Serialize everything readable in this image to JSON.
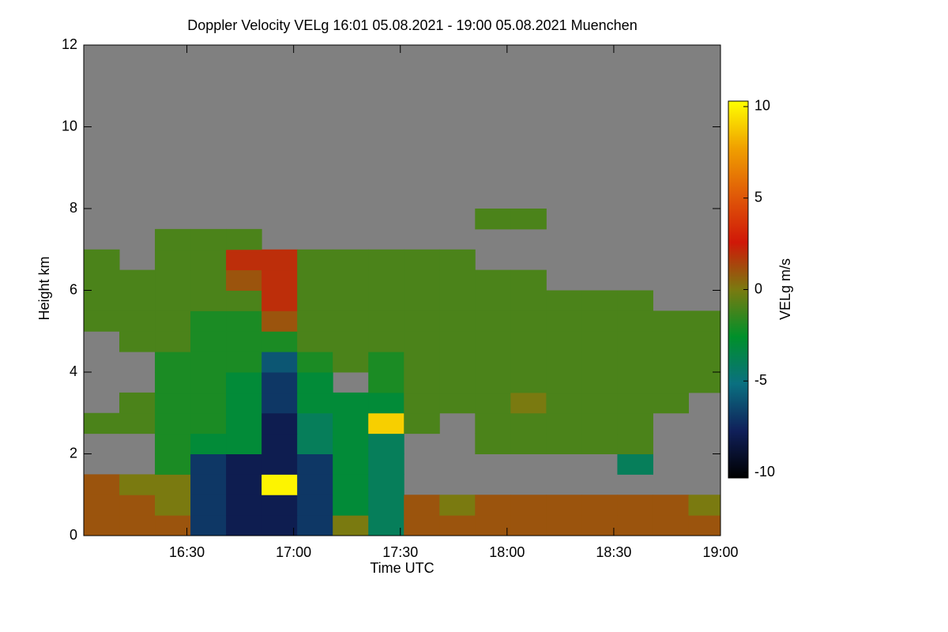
{
  "chart_data": {
    "type": "heatmap",
    "title": "Doppler Velocity VELg   16:01 05.08.2021 - 19:00 05.08.2021 Muenchen",
    "x_label": "Time UTC",
    "y_label": "Height km",
    "colorbar_label": "VELg m/s",
    "xlim": [
      961,
      1140
    ],
    "xticks": [
      {
        "value": 990,
        "label": "16:30"
      },
      {
        "value": 1020,
        "label": "17:00"
      },
      {
        "value": 1050,
        "label": "17:30"
      },
      {
        "value": 1080,
        "label": "18:00"
      },
      {
        "value": 1110,
        "label": "18:30"
      },
      {
        "value": 1140,
        "label": "19:00"
      }
    ],
    "ylim": [
      0,
      12
    ],
    "yticks": [
      0,
      2,
      4,
      6,
      8,
      10,
      12
    ],
    "zlim": [
      -10.3,
      10.3
    ],
    "zticks": [
      -10,
      -5,
      0,
      5,
      10
    ],
    "background": "#808080",
    "colormap": [
      "#000000",
      "#10205a",
      "#0a7080",
      "#00902a",
      "#7a7a10",
      "#d01808",
      "#e05a08",
      "#f0a000",
      "#ffff00"
    ],
    "x": [
      966,
      976,
      986,
      996,
      1006,
      1016,
      1026,
      1036,
      1046,
      1056,
      1066,
      1076,
      1086,
      1096,
      1106,
      1116,
      1126,
      1136
    ],
    "y": [
      0.25,
      0.75,
      1.25,
      1.75,
      2.25,
      2.75,
      3.25,
      3.75,
      4.25,
      4.75,
      5.25,
      5.75,
      6.25,
      6.75,
      7.25,
      7.75,
      8.25,
      8.75,
      9.25,
      9.75,
      10.25,
      10.75,
      11.25,
      11.75
    ],
    "z": [
      [
        1,
        1,
        1,
        -7,
        -8,
        -8,
        -7,
        0,
        -4,
        1,
        1,
        1,
        1,
        1,
        1,
        1,
        1,
        1
      ],
      [
        1,
        1,
        0,
        -7,
        -8,
        -8,
        -7,
        -3,
        -4,
        1,
        0,
        1,
        1,
        1,
        1,
        1,
        1,
        0
      ],
      [
        1,
        0,
        0,
        -7,
        -8,
        10,
        -7,
        -3,
        -4,
        null,
        null,
        null,
        null,
        null,
        null,
        null,
        null,
        null
      ],
      [
        null,
        null,
        -2,
        -7,
        -8,
        -8,
        -7,
        -3,
        -4,
        null,
        null,
        null,
        null,
        null,
        null,
        -4,
        null,
        null
      ],
      [
        null,
        null,
        -2,
        -3,
        -3,
        -8,
        -4,
        -3,
        -4,
        null,
        null,
        -1,
        -1,
        -1,
        -1,
        -1,
        null,
        null
      ],
      [
        -1,
        -1,
        -2,
        -2,
        -3,
        -8,
        -4,
        -3,
        9,
        -1,
        null,
        -1,
        -1,
        -1,
        -1,
        -1,
        null,
        null
      ],
      [
        null,
        -1,
        -2,
        -2,
        -3,
        -7,
        -3,
        -3,
        -3,
        -1,
        -1,
        -1,
        0,
        -1,
        -1,
        -1,
        -1,
        null
      ],
      [
        null,
        null,
        -2,
        -2,
        -3,
        -7,
        -3,
        null,
        -2,
        -1,
        -1,
        -1,
        -1,
        -1,
        -1,
        -1,
        -1,
        -1
      ],
      [
        null,
        null,
        -2,
        -2,
        -2,
        -6,
        -2,
        -1,
        -2,
        -1,
        -1,
        -1,
        -1,
        -1,
        -1,
        -1,
        -1,
        -1
      ],
      [
        null,
        -1,
        -1,
        -2,
        -2,
        -2,
        -1,
        -1,
        -1,
        -1,
        -1,
        -1,
        -1,
        -1,
        -1,
        -1,
        -1,
        -1
      ],
      [
        -1,
        -1,
        -1,
        -2,
        -2,
        1,
        -1,
        -1,
        -1,
        -1,
        -1,
        -1,
        -1,
        -1,
        -1,
        -1,
        -1,
        -1
      ],
      [
        -1,
        -1,
        -1,
        -1,
        -1,
        2,
        -1,
        -1,
        -1,
        -1,
        -1,
        -1,
        -1,
        -1,
        -1,
        -1,
        null,
        null
      ],
      [
        -1,
        -1,
        -1,
        -1,
        1,
        2,
        -1,
        -1,
        -1,
        -1,
        -1,
        -1,
        -1,
        null,
        null,
        null,
        null,
        null
      ],
      [
        -1,
        null,
        -1,
        -1,
        2,
        2,
        -1,
        -1,
        -1,
        -1,
        -1,
        null,
        null,
        null,
        null,
        null,
        null,
        null
      ],
      [
        null,
        null,
        -1,
        -1,
        -1,
        null,
        null,
        null,
        null,
        null,
        null,
        null,
        null,
        null,
        null,
        null,
        null,
        null
      ],
      [
        null,
        null,
        null,
        null,
        null,
        null,
        null,
        null,
        null,
        null,
        null,
        -1,
        -1,
        null,
        null,
        null,
        null,
        null
      ],
      [
        null,
        null,
        null,
        null,
        null,
        null,
        null,
        null,
        null,
        null,
        null,
        null,
        null,
        null,
        null,
        null,
        null,
        null
      ],
      [
        null,
        null,
        null,
        null,
        null,
        null,
        null,
        null,
        null,
        null,
        null,
        null,
        null,
        null,
        null,
        null,
        null,
        null
      ],
      [
        null,
        null,
        null,
        null,
        null,
        null,
        null,
        null,
        null,
        null,
        null,
        null,
        null,
        null,
        null,
        null,
        null,
        null
      ],
      [
        null,
        null,
        null,
        null,
        null,
        null,
        null,
        null,
        null,
        null,
        null,
        null,
        null,
        null,
        null,
        null,
        null,
        null
      ],
      [
        null,
        null,
        null,
        null,
        null,
        null,
        null,
        null,
        null,
        null,
        null,
        null,
        null,
        null,
        null,
        null,
        null,
        null
      ],
      [
        null,
        null,
        null,
        null,
        null,
        null,
        null,
        null,
        null,
        null,
        null,
        null,
        null,
        null,
        null,
        null,
        null,
        null
      ],
      [
        null,
        null,
        null,
        null,
        null,
        null,
        null,
        null,
        null,
        null,
        null,
        null,
        null,
        null,
        null,
        null,
        null,
        null
      ],
      [
        null,
        null,
        null,
        null,
        null,
        null,
        null,
        null,
        null,
        null,
        null,
        null,
        null,
        null,
        null,
        null,
        null,
        null
      ]
    ]
  }
}
